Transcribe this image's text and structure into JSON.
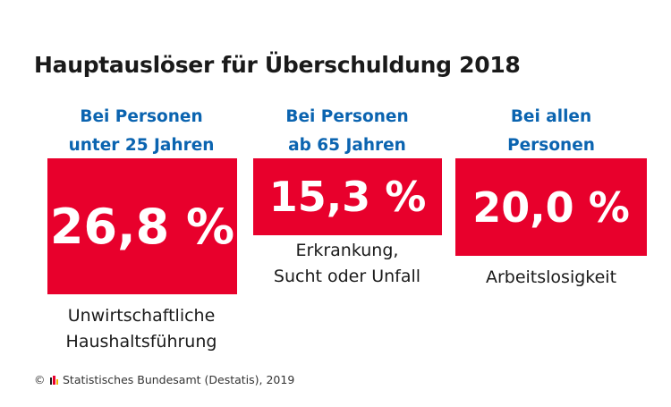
{
  "title": "Hauptauslöser für Überschuldung 2018",
  "chart_data": {
    "type": "table",
    "title": "Hauptauslöser für Überschuldung 2018",
    "categories": [
      [
        "Bei Personen",
        "unter 25 Jahren"
      ],
      [
        "Bei Personen",
        "ab 65 Jahren"
      ],
      [
        "Bei allen",
        "Personen"
      ]
    ],
    "values": [
      26.8,
      15.3,
      20.0
    ],
    "value_labels": [
      "26,8 %",
      "15,3 %",
      "20,0 %"
    ],
    "descriptions": [
      [
        "Unwirtschaftliche",
        "Haushaltsführung"
      ],
      [
        "Erkrankung,",
        "Sucht oder Unfall"
      ],
      [
        "Arbeitslosigkeit"
      ]
    ],
    "unit": "%"
  },
  "footer": {
    "copyright": "©",
    "source": "Statistisches Bundesamt (Destatis), 2019"
  },
  "colors": {
    "box": "#e8002c",
    "heading": "#0b64b0",
    "logo_bars": [
      "#1a1a1a",
      "#e8002c",
      "#f0b400"
    ]
  },
  "icons": {
    "footer_logo": "destatis-logo-icon"
  }
}
